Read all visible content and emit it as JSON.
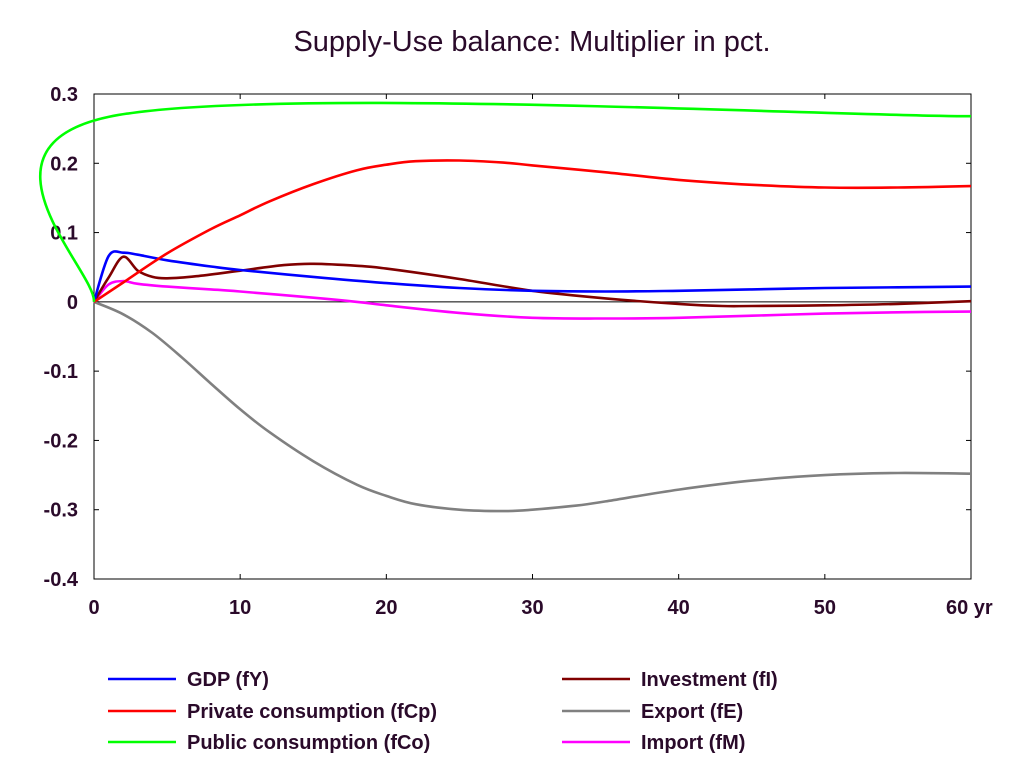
{
  "chart_data": {
    "type": "line",
    "title": "Supply-Use balance: Multiplier in pct.",
    "x_unit_label": "yr",
    "xlim": [
      0,
      60
    ],
    "ylim": [
      -0.4,
      0.3
    ],
    "x_ticks": [
      0,
      10,
      20,
      30,
      40,
      50,
      60
    ],
    "x_tick_labels": [
      "0",
      "10",
      "20",
      "30",
      "40",
      "50",
      "60 yr"
    ],
    "y_ticks": [
      0.3,
      0.2,
      0.1,
      0,
      -0.1,
      -0.2,
      -0.3,
      -0.4
    ],
    "y_tick_labels": [
      "0.3",
      "0.2",
      "0.1",
      "0",
      "-0.1",
      "-0.2",
      "-0.3",
      "-0.4"
    ],
    "grid": false,
    "zero_line": true,
    "legend_position": "bottom",
    "series": [
      {
        "name": "GDP (fY)",
        "color": "#0000ff",
        "x": [
          0,
          1,
          2,
          3,
          5,
          8,
          10,
          15,
          20,
          25,
          30,
          35,
          40,
          45,
          50,
          55,
          60
        ],
        "values": [
          0,
          0.066,
          0.071,
          0.068,
          0.06,
          0.051,
          0.046,
          0.036,
          0.027,
          0.02,
          0.016,
          0.015,
          0.016,
          0.018,
          0.02,
          0.021,
          0.022
        ]
      },
      {
        "name": "Private consumption (fCp)",
        "color": "#ff0000",
        "x": [
          0,
          2,
          5,
          8,
          10,
          12,
          15,
          18,
          20,
          22,
          25,
          28,
          30,
          35,
          40,
          45,
          50,
          55,
          60
        ],
        "values": [
          0,
          0.028,
          0.07,
          0.105,
          0.125,
          0.145,
          0.17,
          0.19,
          0.198,
          0.203,
          0.204,
          0.201,
          0.197,
          0.187,
          0.176,
          0.169,
          0.165,
          0.165,
          0.167
        ]
      },
      {
        "name": "Public consumption (fCo)",
        "color": "#00ff00",
        "x": [
          0,
          1,
          60
        ],
        "values": [
          0,
          0.267,
          0.268
        ]
      },
      {
        "name": "Investment (fI)",
        "color": "#800000",
        "x": [
          0,
          1,
          2,
          3,
          4,
          5,
          7,
          10,
          13,
          15,
          18,
          20,
          25,
          30,
          35,
          40,
          43,
          45,
          50,
          55,
          60
        ],
        "values": [
          0,
          0.035,
          0.065,
          0.045,
          0.036,
          0.034,
          0.037,
          0.045,
          0.053,
          0.055,
          0.052,
          0.048,
          0.033,
          0.016,
          0.005,
          -0.003,
          -0.006,
          -0.006,
          -0.005,
          -0.003,
          0.001
        ]
      },
      {
        "name": "Export (fE)",
        "color": "#808080",
        "x": [
          0,
          2,
          4,
          6,
          8,
          10,
          12,
          15,
          18,
          20,
          22,
          25,
          28,
          30,
          33,
          35,
          40,
          45,
          50,
          55,
          60
        ],
        "values": [
          0,
          -0.018,
          -0.045,
          -0.08,
          -0.118,
          -0.155,
          -0.188,
          -0.23,
          -0.264,
          -0.28,
          -0.292,
          -0.3,
          -0.302,
          -0.3,
          -0.294,
          -0.288,
          -0.271,
          -0.258,
          -0.25,
          -0.247,
          -0.248
        ]
      },
      {
        "name": "Import (fM)",
        "color": "#ff00ff",
        "x": [
          0,
          1,
          2,
          3,
          5,
          8,
          10,
          15,
          18,
          20,
          25,
          30,
          35,
          40,
          45,
          50,
          55,
          60
        ],
        "values": [
          0,
          0.025,
          0.03,
          0.026,
          0.022,
          0.018,
          0.015,
          0.006,
          0.0,
          -0.005,
          -0.016,
          -0.023,
          -0.024,
          -0.023,
          -0.02,
          -0.017,
          -0.015,
          -0.014
        ]
      }
    ]
  }
}
